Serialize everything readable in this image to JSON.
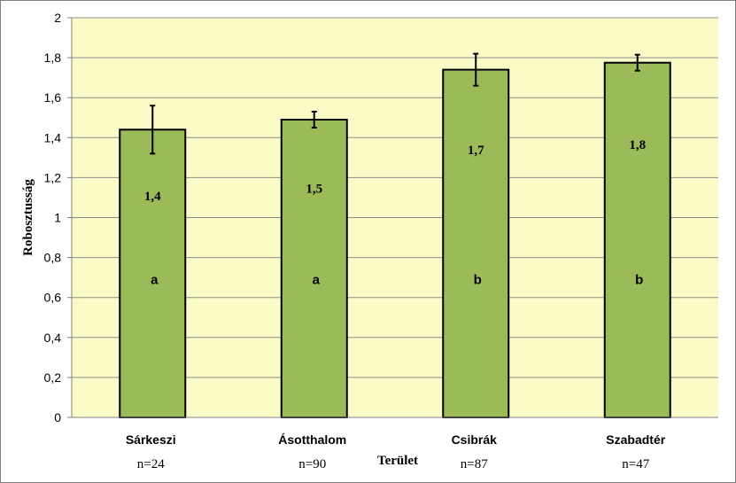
{
  "chart_data": {
    "type": "bar",
    "title": "",
    "xlabel": "Terület",
    "ylabel": "Robosztusság",
    "ylim": [
      0,
      2
    ],
    "yticks": [
      "0",
      "0,2",
      "0,4",
      "0,6",
      "0,8",
      "1",
      "1,2",
      "1,4",
      "1,6",
      "1,8",
      "2"
    ],
    "ytick_values": [
      0,
      0.2,
      0.4,
      0.6,
      0.8,
      1.0,
      1.2,
      1.4,
      1.6,
      1.8,
      2.0
    ],
    "grid": true,
    "legend": "none",
    "categories": [
      "Sárkeszi",
      "Ásotthalom",
      "Csibrák",
      "Szabadtér"
    ],
    "sample_sizes": [
      "n=24",
      "n=90",
      "n=87",
      "n=47"
    ],
    "values": [
      1.44,
      1.49,
      1.74,
      1.775
    ],
    "error_bars": [
      0.12,
      0.04,
      0.08,
      0.04
    ],
    "value_labels": [
      "1,4",
      "1,5",
      "1,7",
      "1,8"
    ],
    "group_letters": [
      "a",
      "a",
      "b",
      "b"
    ],
    "colors": {
      "bar": "#9bbb59",
      "bar_edge": "#000000",
      "plot_background": "#fbfbc8",
      "gridline": "#8c8c8c"
    }
  }
}
